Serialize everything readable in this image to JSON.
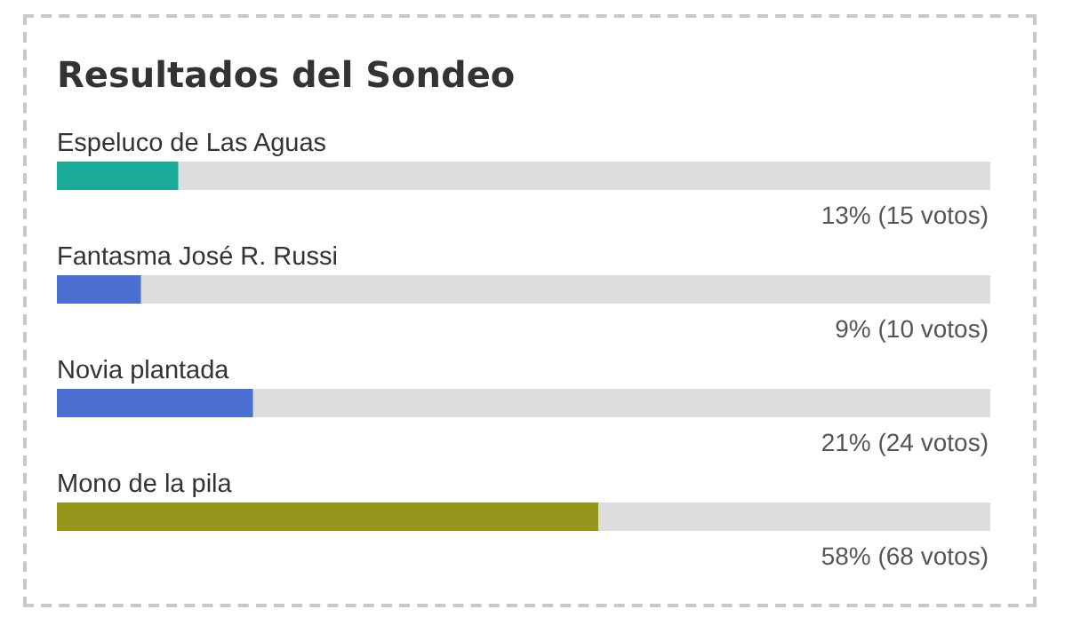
{
  "chart_data": {
    "type": "bar",
    "orientation": "horizontal",
    "title": "Resultados del Sondeo",
    "categories": [
      "Espeluco de Las Aguas",
      "Fantasma José R. Russi",
      "Novia plantada",
      "Mono de la pila"
    ],
    "values": [
      13,
      9,
      21,
      58
    ],
    "colors": [
      "#1aab9b",
      "#4a6fd1",
      "#4a6fd1",
      "#95961b"
    ],
    "value_labels": [
      "13% (15 votos)",
      "9% (10 votos)",
      "21% (24 votos)",
      "58% (68 votos)"
    ],
    "xlim": [
      0,
      100
    ],
    "tick_labels": false,
    "grid": false,
    "legend": false
  }
}
